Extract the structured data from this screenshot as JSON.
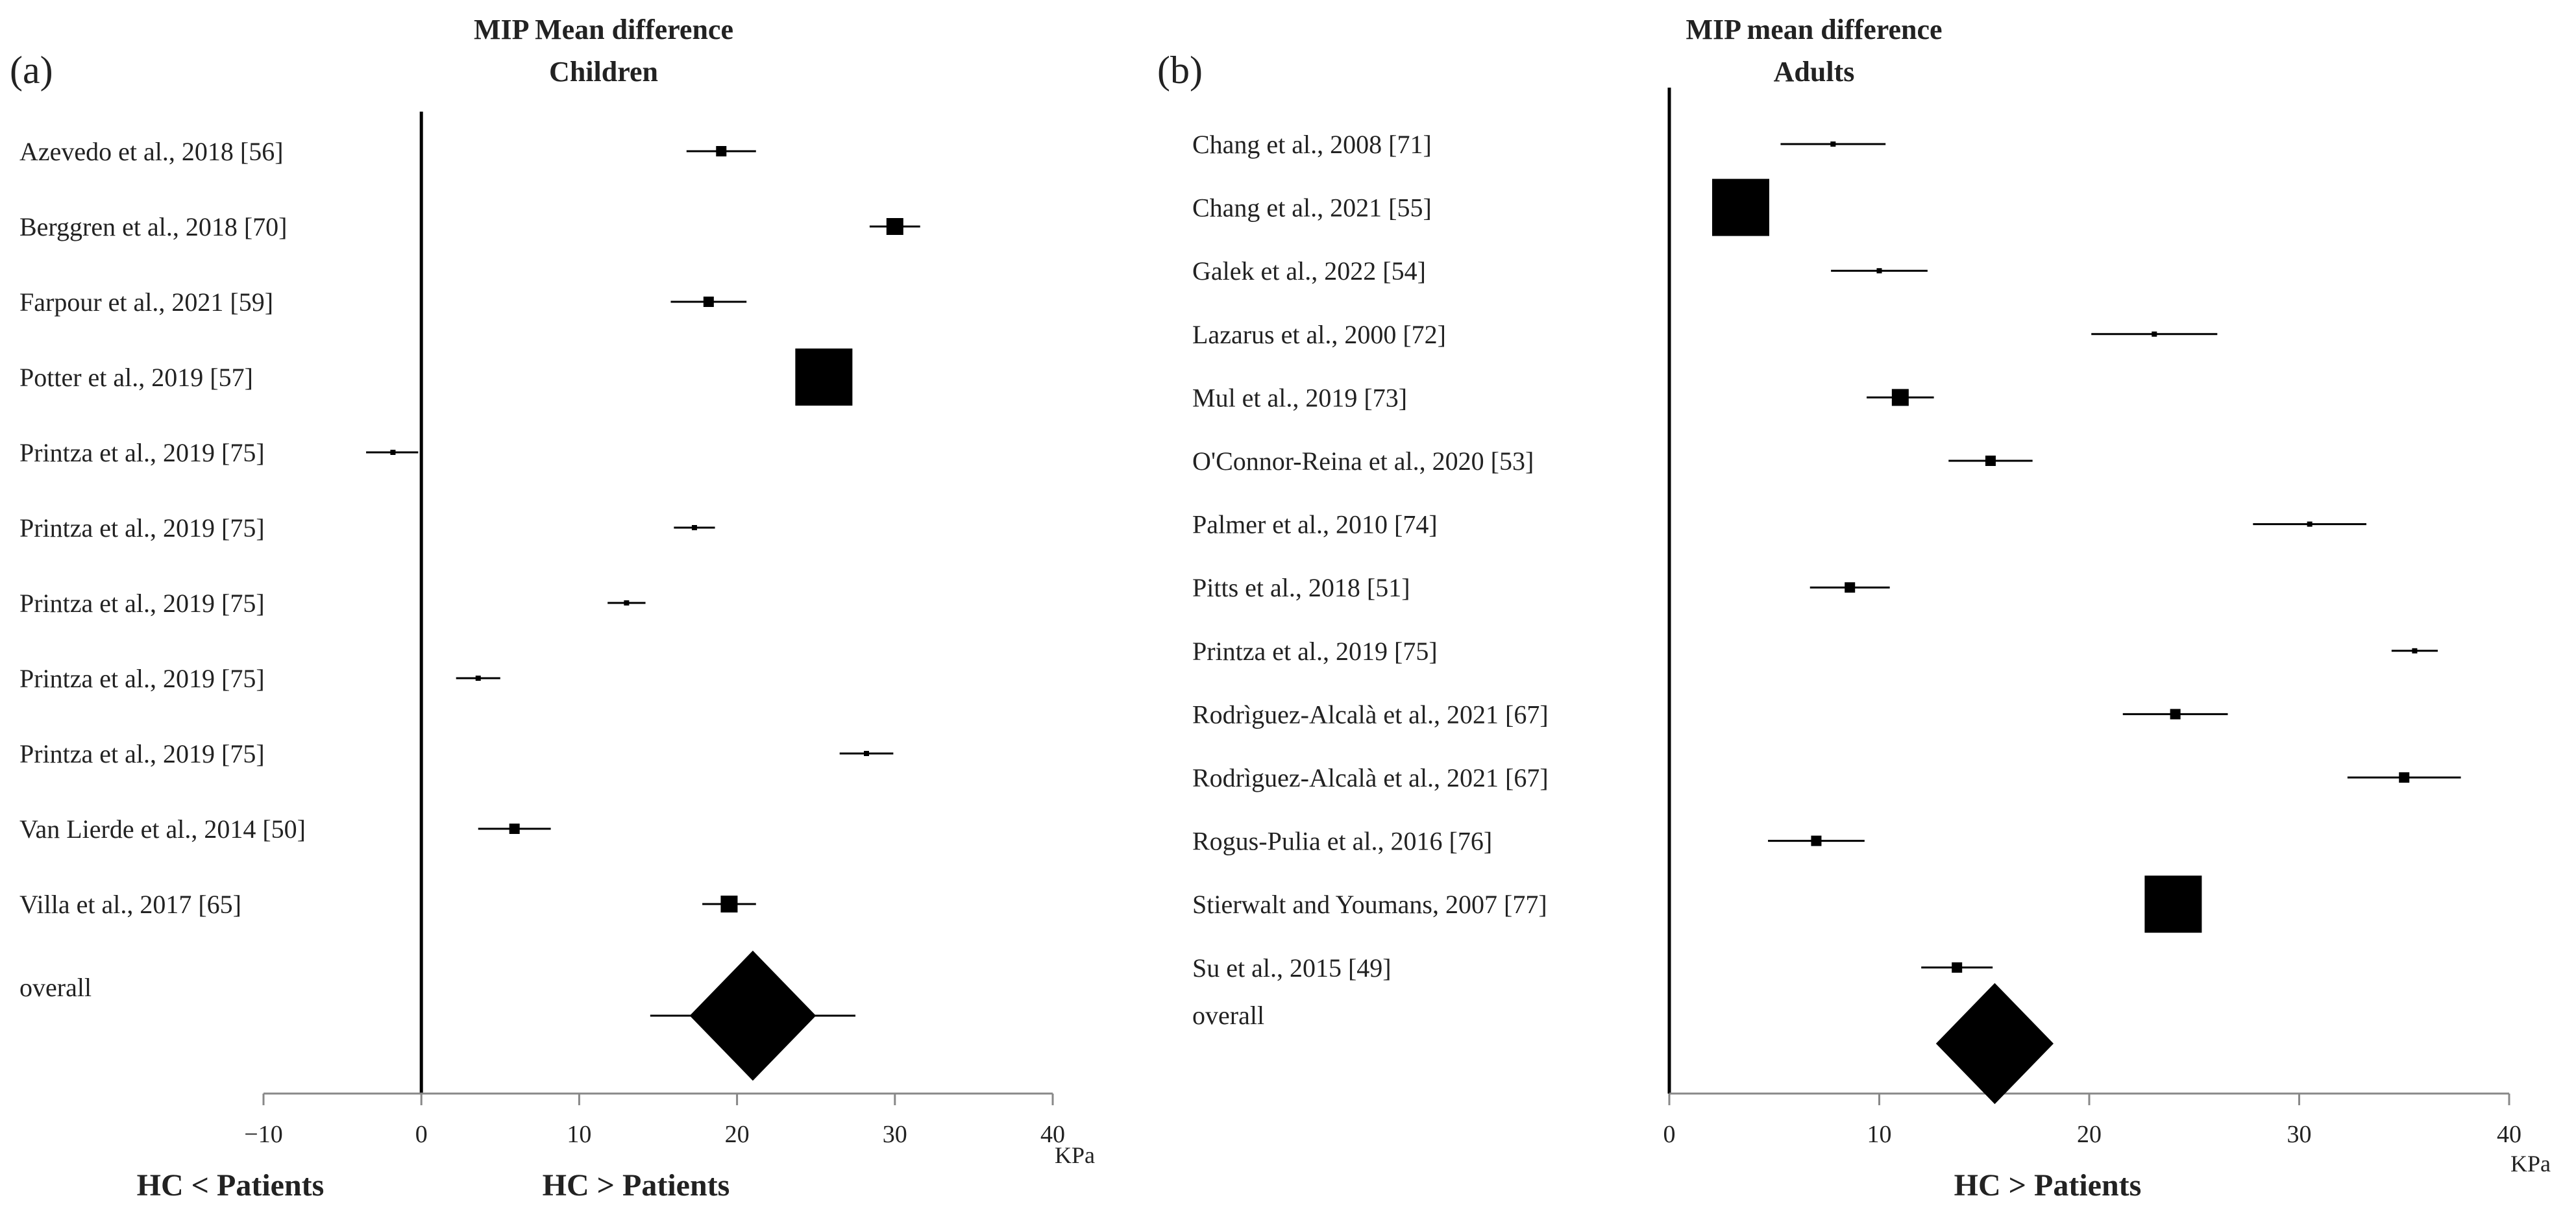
{
  "chart_data": [
    {
      "type": "forest",
      "panel": "(a)",
      "title": [
        "MIP Mean difference",
        "Children"
      ],
      "xlabel": "KPa",
      "xlim": [
        -10,
        40
      ],
      "ticks": [
        -10,
        0,
        10,
        20,
        30,
        40
      ],
      "tick_labels": [
        "−10",
        "0",
        "10",
        "20",
        "30",
        "40"
      ],
      "direction_labels": [
        "HC < Patients",
        "HC > Patients"
      ],
      "studies": [
        {
          "label": "Azevedo et al., 2018 [56]",
          "estimate": 19.0,
          "ci": [
            16.8,
            21.2
          ],
          "weight": "small"
        },
        {
          "label": "Berggren et al., 2018 [70]",
          "estimate": 30.0,
          "ci": [
            28.4,
            31.6
          ],
          "weight": "medium"
        },
        {
          "label": "Farpour et al., 2021 [59]",
          "estimate": 18.2,
          "ci": [
            15.8,
            20.6
          ],
          "weight": "small"
        },
        {
          "label": "Potter et al., 2019 [57]",
          "estimate": 25.5,
          "ci": [
            24.5,
            26.5
          ],
          "weight": "large"
        },
        {
          "label": "Printza et al., 2019 [75]",
          "estimate": -1.8,
          "ci": [
            -3.5,
            -0.2
          ],
          "weight": "tiny"
        },
        {
          "label": "Printza et al., 2019 [75]",
          "estimate": 17.3,
          "ci": [
            16.0,
            18.6
          ],
          "weight": "tiny"
        },
        {
          "label": "Printza et al., 2019 [75]",
          "estimate": 13.0,
          "ci": [
            11.8,
            14.2
          ],
          "weight": "tiny"
        },
        {
          "label": "Printza et al., 2019 [75]",
          "estimate": 3.6,
          "ci": [
            2.2,
            5.0
          ],
          "weight": "tiny"
        },
        {
          "label": "Printza et al., 2019 [75]",
          "estimate": 28.2,
          "ci": [
            26.5,
            29.9
          ],
          "weight": "tiny"
        },
        {
          "label": "Van Lierde et al., 2014 [50]",
          "estimate": 5.9,
          "ci": [
            3.6,
            8.2
          ],
          "weight": "small"
        },
        {
          "label": "Villa et al., 2017 [65]",
          "estimate": 19.5,
          "ci": [
            17.8,
            21.2
          ],
          "weight": "medium"
        }
      ],
      "overall": {
        "label": "overall",
        "estimate": 21.0,
        "ci": [
          14.5,
          27.5
        ],
        "diamond": [
          17.0,
          25.0
        ]
      }
    },
    {
      "type": "forest",
      "panel": "(b)",
      "title": [
        "MIP mean difference",
        "Adults"
      ],
      "xlabel": "KPa",
      "xlim": [
        0,
        40
      ],
      "ticks": [
        0,
        10,
        20,
        30,
        40
      ],
      "tick_labels": [
        "0",
        "10",
        "20",
        "30",
        "40"
      ],
      "direction_labels": [
        "HC > Patients"
      ],
      "studies": [
        {
          "label": "Chang et al., 2008 [71]",
          "estimate": 7.8,
          "ci": [
            5.3,
            10.3
          ],
          "weight": "tiny"
        },
        {
          "label": "Chang et al., 2021 [55]",
          "estimate": 3.4,
          "ci": [
            2.2,
            4.6
          ],
          "weight": "large"
        },
        {
          "label": "Galek et al., 2022 [54]",
          "estimate": 10.0,
          "ci": [
            7.7,
            12.3
          ],
          "weight": "tiny"
        },
        {
          "label": "Lazarus et al., 2000 [72]",
          "estimate": 23.1,
          "ci": [
            20.1,
            26.1
          ],
          "weight": "tiny"
        },
        {
          "label": "Mul et al., 2019 [73]",
          "estimate": 11.0,
          "ci": [
            9.4,
            12.6
          ],
          "weight": "medium"
        },
        {
          "label": "O'Connor-Reina et al., 2020 [53]",
          "estimate": 15.3,
          "ci": [
            13.3,
            17.3
          ],
          "weight": "small"
        },
        {
          "label": "Palmer et al., 2010 [74]",
          "estimate": 30.5,
          "ci": [
            27.8,
            33.2
          ],
          "weight": "tiny"
        },
        {
          "label": "Pitts et al., 2018 [51]",
          "estimate": 8.6,
          "ci": [
            6.7,
            10.5
          ],
          "weight": "small"
        },
        {
          "label": "Printza et al., 2019 [75]",
          "estimate": 35.5,
          "ci": [
            34.4,
            36.6
          ],
          "weight": "tiny"
        },
        {
          "label": "Rodrìguez-Alcalà et al., 2021 [67]",
          "estimate": 24.1,
          "ci": [
            21.6,
            26.6
          ],
          "weight": "small"
        },
        {
          "label": "Rodrìguez-Alcalà et al., 2021 [67]",
          "estimate": 35.0,
          "ci": [
            32.3,
            37.7
          ],
          "weight": "small"
        },
        {
          "label": "Rogus-Pulia et al., 2016 [76]",
          "estimate": 7.0,
          "ci": [
            4.7,
            9.3
          ],
          "weight": "small"
        },
        {
          "label": "Stierwalt and Youmans,  2007 [77]",
          "estimate": 24.0,
          "ci": [
            23.0,
            25.0
          ],
          "weight": "large"
        },
        {
          "label": "Su et al., 2015 [49]",
          "estimate": 13.7,
          "ci": [
            12.0,
            15.4
          ],
          "weight": "small"
        }
      ],
      "overall": {
        "label": "overall",
        "estimate": 15.5,
        "ci": [
          13.0,
          18.0
        ],
        "diamond": [
          12.7,
          18.3
        ]
      }
    }
  ]
}
